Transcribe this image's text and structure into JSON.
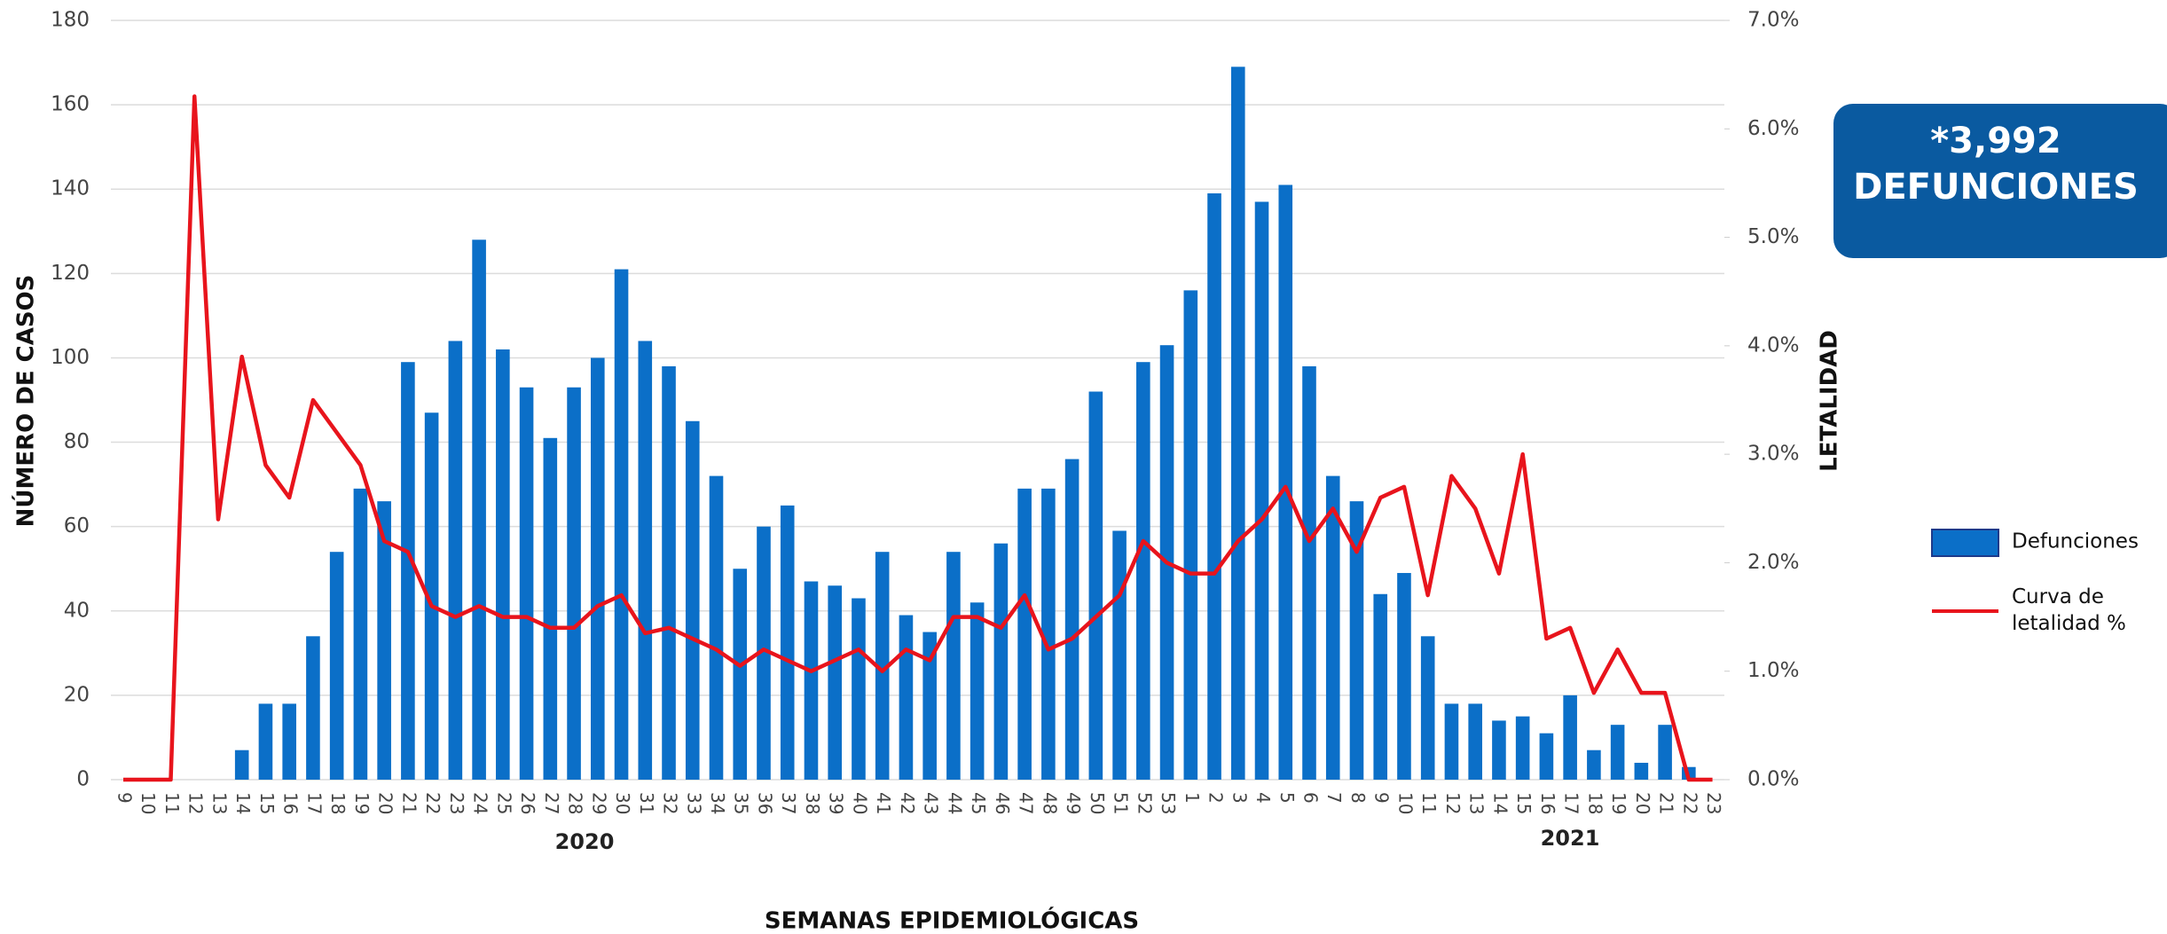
{
  "chart_data": {
    "type": "bar",
    "x_label": "SEMANAS EPIDEMIOLÓGICAS",
    "y_label": "NÚMERO DE CASOS",
    "y2_label": "LETALIDAD",
    "annotations": [
      "2020",
      "2021"
    ],
    "total_box": [
      "*3,992",
      "DEFUNCIONES"
    ],
    "categories": [
      "9",
      "10",
      "11",
      "12",
      "13",
      "14",
      "15",
      "16",
      "17",
      "18",
      "19",
      "20",
      "21",
      "22",
      "23",
      "24",
      "25",
      "26",
      "27",
      "28",
      "29",
      "30",
      "31",
      "32",
      "33",
      "34",
      "35",
      "36",
      "37",
      "38",
      "39",
      "40",
      "41",
      "42",
      "43",
      "44",
      "45",
      "46",
      "47",
      "48",
      "49",
      "50",
      "51",
      "52",
      "53",
      "1",
      "2",
      "3",
      "4",
      "5",
      "6",
      "7",
      "8",
      "9",
      "10",
      "11",
      "12",
      "13",
      "14",
      "15",
      "16",
      "17",
      "18",
      "19",
      "20",
      "21",
      "22",
      "23"
    ],
    "series": [
      {
        "name": "Defunciones",
        "color": "#0b6fc8",
        "values": [
          0,
          0,
          0,
          0,
          0,
          7,
          18,
          18,
          34,
          54,
          69,
          66,
          99,
          87,
          104,
          128,
          102,
          93,
          81,
          93,
          100,
          121,
          104,
          98,
          85,
          72,
          50,
          60,
          65,
          47,
          46,
          43,
          54,
          39,
          35,
          54,
          42,
          56,
          69,
          69,
          76,
          92,
          59,
          99,
          103,
          116,
          139,
          169,
          137,
          141,
          98,
          72,
          66,
          44,
          49,
          34,
          18,
          18,
          14,
          15,
          11,
          20,
          7,
          13,
          4,
          13,
          3,
          0
        ]
      },
      {
        "name": "Curva de letalidad %",
        "color": "#e8141c",
        "type": "line",
        "axis": "y2",
        "values": [
          0,
          0,
          0,
          6.3,
          2.4,
          3.9,
          2.9,
          2.6,
          3.5,
          3.2,
          2.9,
          2.2,
          2.1,
          1.6,
          1.5,
          1.6,
          1.5,
          1.5,
          1.4,
          1.4,
          1.6,
          1.7,
          1.35,
          1.4,
          1.3,
          1.2,
          1.05,
          1.2,
          1.1,
          1.0,
          1.1,
          1.2,
          1.0,
          1.2,
          1.1,
          1.5,
          1.5,
          1.4,
          1.7,
          1.2,
          1.3,
          1.5,
          1.7,
          2.2,
          2.0,
          1.9,
          1.9,
          2.2,
          2.4,
          2.7,
          2.2,
          2.5,
          2.1,
          2.6,
          2.7,
          1.7,
          2.8,
          2.5,
          1.9,
          3.0,
          1.3,
          1.4,
          0.8,
          1.2,
          0.8,
          0.8,
          0,
          0
        ]
      }
    ],
    "ylim": [
      0,
      180
    ],
    "yticks": [
      0,
      20,
      40,
      60,
      80,
      100,
      120,
      140,
      160,
      180
    ],
    "y2lim": [
      0,
      7
    ],
    "y2ticks": [
      {
        "value": 0,
        "label": "0.0%"
      },
      {
        "value": 1,
        "label": "1.0%"
      },
      {
        "value": 2,
        "label": "2.0%"
      },
      {
        "value": 3,
        "label": "3.0%"
      },
      {
        "value": 4,
        "label": "4.0%"
      },
      {
        "value": 5,
        "label": "5.0%"
      },
      {
        "value": 6,
        "label": "6.0%"
      },
      {
        "value": 7,
        "label": "7.0%"
      }
    ],
    "grid": true
  }
}
